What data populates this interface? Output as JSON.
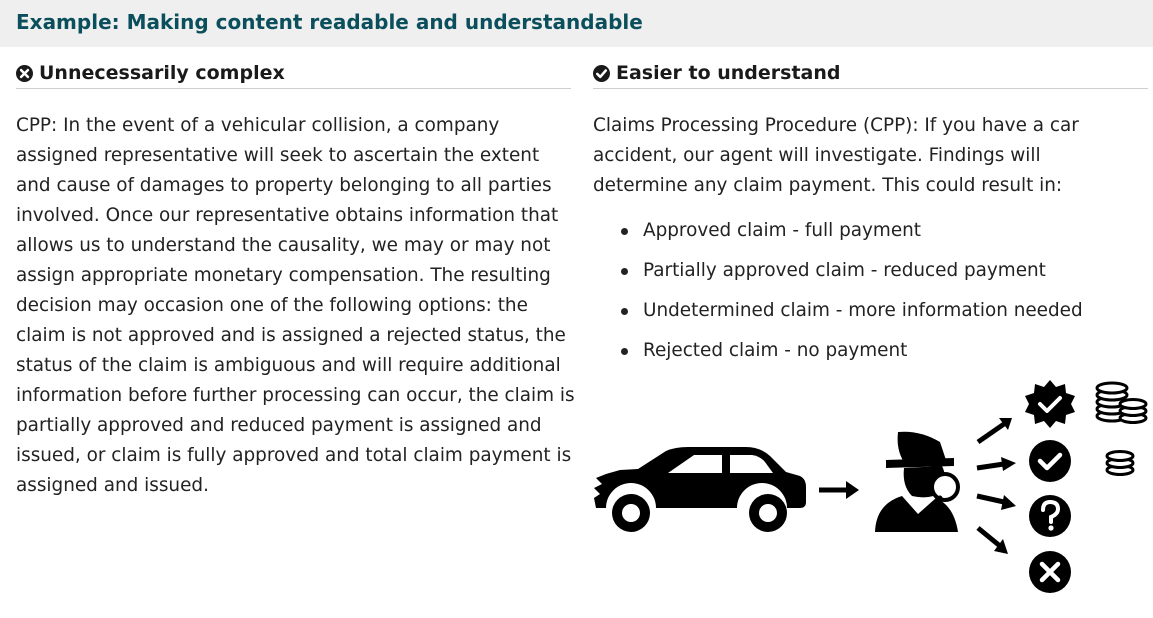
{
  "header": {
    "title": "Example: Making content readable and understandable"
  },
  "left": {
    "heading": "Unnecessarily complex",
    "heading_icon": "x-circle-icon",
    "body": "CPP: In the event of a vehicular collision, a company assigned representative will seek to ascertain the extent and cause of damages to property belonging to all parties involved. Once our representative obtains information that allows us to understand the causality, we may or may not assign appropriate monetary compensation. The resulting decision may occasion one of the following options: the claim is not approved and is assigned a rejected status, the status of the claim is ambiguous and will require additional information before further processing can occur, the claim is partially approved and reduced payment is assigned and issued, or claim is fully approved and total claim payment is assigned and issued."
  },
  "right": {
    "heading": "Easier to understand",
    "heading_icon": "check-circle-icon",
    "body": "Claims Processing Procedure (CPP): If you have a car accident, our agent will investigate. Findings will determine any claim payment. This could result in:",
    "outcomes": [
      "Approved claim - full payment",
      "Partially approved claim - reduced payment",
      "Undetermined claim - more information needed",
      "Rejected claim - no payment"
    ]
  },
  "illustration": {
    "icons": [
      "crashed-car-icon",
      "arrow-right-icon",
      "detective-agent-icon",
      "approved-badge-icon",
      "check-circle-icon",
      "question-circle-icon",
      "x-circle-icon",
      "coin-stack-large-icon",
      "coin-stack-small-icon"
    ],
    "color": "#000000"
  }
}
